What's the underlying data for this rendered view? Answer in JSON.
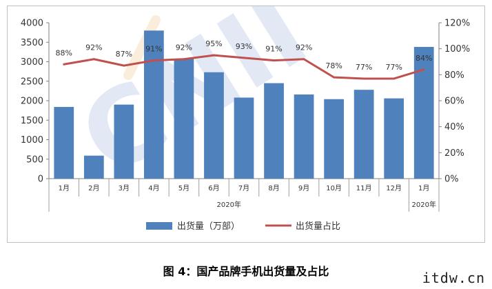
{
  "chart_data": {
    "type": "bar",
    "categories": [
      "1月",
      "2月",
      "3月",
      "4月",
      "5月",
      "6月",
      "7月",
      "8月",
      "9月",
      "10月",
      "11月",
      "12月",
      "1月"
    ],
    "category_groups": [
      {
        "label": "2020年",
        "from": 0,
        "to": 11
      },
      {
        "label": "2020年",
        "from": 12,
        "to": 12
      }
    ],
    "series": [
      {
        "name": "出货量（万部）",
        "type": "bar",
        "axis": "left",
        "color": "#4f81bd",
        "values": [
          1840,
          590,
          1900,
          3800,
          3080,
          2730,
          2080,
          2450,
          2160,
          2040,
          2280,
          2060,
          3380
        ]
      },
      {
        "name": "出货量占比",
        "type": "line",
        "axis": "right",
        "color": "#c0504d",
        "values": [
          88,
          92,
          87,
          91,
          92,
          95,
          93,
          91,
          92,
          78,
          77,
          77,
          84
        ],
        "labels": [
          "88%",
          "92%",
          "87%",
          "91%",
          "92%",
          "95%",
          "93%",
          "91%",
          "92%",
          "78%",
          "77%",
          "77%",
          "84%"
        ]
      }
    ],
    "y_left": {
      "min": 0,
      "max": 4000,
      "ticks": [
        "0",
        "500",
        "1000",
        "1500",
        "2000",
        "2500",
        "3000",
        "3500",
        "4000"
      ]
    },
    "y_right": {
      "min": 0,
      "max": 120,
      "ticks": [
        "0%",
        "20%",
        "40%",
        "60%",
        "80%",
        "100%",
        "120%"
      ]
    },
    "grid": false,
    "legend_position": "bottom"
  },
  "caption": "图 4：国产品牌手机出货量及占比",
  "site_mark": "itdw.cn",
  "colors": {
    "bar": "#4f81bd",
    "line": "#c0504d"
  }
}
